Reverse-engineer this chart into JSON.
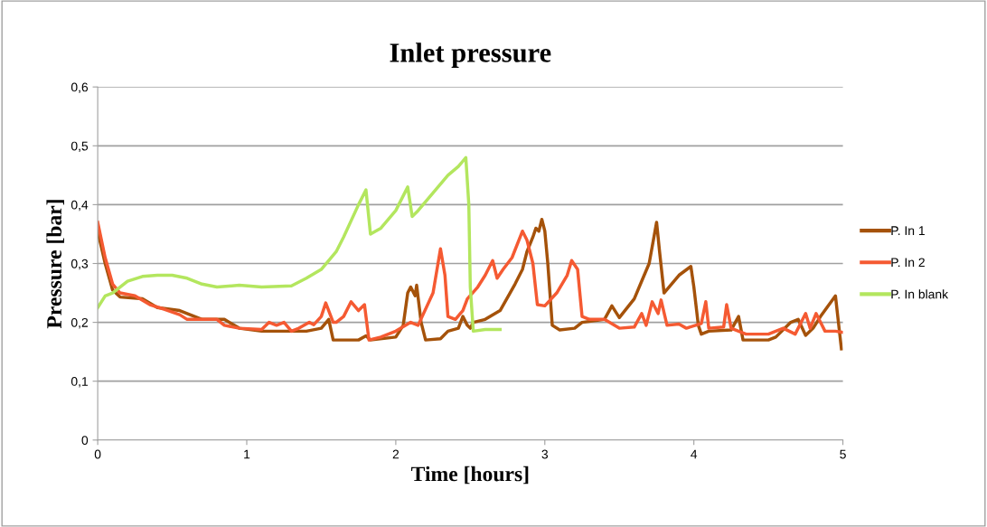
{
  "chart_data": {
    "type": "line",
    "title": "Inlet pressure",
    "xlabel": "Time [hours]",
    "ylabel": "Pressure [bar]",
    "xlim": [
      0,
      5
    ],
    "xticks": [
      0,
      1,
      2,
      3,
      4,
      5
    ],
    "ylim": [
      0,
      0.6
    ],
    "yticks": [
      {
        "value": 0,
        "label": "0"
      },
      {
        "value": 0.1,
        "label": "0,1"
      },
      {
        "value": 0.2,
        "label": "0,2"
      },
      {
        "value": 0.3,
        "label": "0,3"
      },
      {
        "value": 0.4,
        "label": "0,4"
      },
      {
        "value": 0.5,
        "label": "0,5"
      },
      {
        "value": 0.6,
        "label": "0,6"
      }
    ],
    "grid": "y",
    "legend": "right",
    "marker": "none",
    "line_style": "solid",
    "series": [
      {
        "name": "P. In 1",
        "color": "#a5520a",
        "x": [
          0.0,
          0.05,
          0.1,
          0.15,
          0.3,
          0.4,
          0.55,
          0.65,
          0.7,
          0.85,
          0.95,
          1.1,
          1.3,
          1.4,
          1.5,
          1.55,
          1.58,
          1.75,
          1.8,
          1.83,
          2.0,
          2.05,
          2.08,
          2.1,
          2.13,
          2.14,
          2.17,
          2.2,
          2.3,
          2.35,
          2.42,
          2.45,
          2.48,
          2.5,
          2.52,
          2.6,
          2.7,
          2.8,
          2.85,
          2.88,
          2.92,
          2.94,
          2.96,
          2.98,
          3.0,
          3.02,
          3.05,
          3.1,
          3.2,
          3.25,
          3.4,
          3.45,
          3.5,
          3.6,
          3.65,
          3.7,
          3.75,
          3.77,
          3.8,
          3.85,
          3.9,
          3.98,
          4.0,
          4.03,
          4.05,
          4.1,
          4.25,
          4.3,
          4.33,
          4.5,
          4.55,
          4.65,
          4.7,
          4.75,
          4.8,
          4.85,
          4.95,
          4.97,
          4.99
        ],
        "values": [
          0.355,
          0.3,
          0.255,
          0.243,
          0.24,
          0.225,
          0.22,
          0.21,
          0.205,
          0.205,
          0.19,
          0.185,
          0.185,
          0.185,
          0.19,
          0.205,
          0.17,
          0.17,
          0.177,
          0.17,
          0.175,
          0.195,
          0.25,
          0.26,
          0.245,
          0.263,
          0.2,
          0.17,
          0.172,
          0.185,
          0.19,
          0.21,
          0.195,
          0.19,
          0.2,
          0.205,
          0.22,
          0.265,
          0.29,
          0.32,
          0.345,
          0.36,
          0.355,
          0.375,
          0.355,
          0.3,
          0.195,
          0.187,
          0.19,
          0.2,
          0.205,
          0.228,
          0.208,
          0.24,
          0.27,
          0.3,
          0.37,
          0.32,
          0.25,
          0.265,
          0.28,
          0.295,
          0.26,
          0.195,
          0.18,
          0.185,
          0.187,
          0.21,
          0.17,
          0.17,
          0.175,
          0.2,
          0.205,
          0.178,
          0.19,
          0.21,
          0.245,
          0.2,
          0.155
        ]
      },
      {
        "name": "P. In 2",
        "color": "#f55a32",
        "x": [
          0.0,
          0.05,
          0.1,
          0.15,
          0.25,
          0.35,
          0.45,
          0.55,
          0.6,
          0.8,
          0.85,
          0.95,
          1.1,
          1.15,
          1.2,
          1.25,
          1.3,
          1.35,
          1.42,
          1.45,
          1.5,
          1.53,
          1.58,
          1.6,
          1.65,
          1.7,
          1.75,
          1.79,
          1.82,
          1.9,
          2.0,
          2.1,
          2.15,
          2.25,
          2.3,
          2.33,
          2.35,
          2.4,
          2.45,
          2.48,
          2.55,
          2.6,
          2.65,
          2.68,
          2.72,
          2.78,
          2.85,
          2.88,
          2.92,
          2.95,
          3.0,
          3.08,
          3.15,
          3.18,
          3.22,
          3.25,
          3.3,
          3.4,
          3.5,
          3.6,
          3.65,
          3.68,
          3.72,
          3.76,
          3.78,
          3.82,
          3.9,
          3.95,
          4.05,
          4.08,
          4.1,
          4.2,
          4.22,
          4.25,
          4.35,
          4.5,
          4.6,
          4.68,
          4.75,
          4.78,
          4.82,
          4.88,
          4.95,
          5.0
        ],
        "values": [
          0.37,
          0.31,
          0.265,
          0.25,
          0.245,
          0.23,
          0.222,
          0.213,
          0.205,
          0.205,
          0.195,
          0.19,
          0.188,
          0.2,
          0.195,
          0.2,
          0.185,
          0.19,
          0.2,
          0.196,
          0.21,
          0.233,
          0.2,
          0.2,
          0.21,
          0.235,
          0.22,
          0.23,
          0.17,
          0.175,
          0.185,
          0.2,
          0.195,
          0.25,
          0.325,
          0.28,
          0.21,
          0.205,
          0.22,
          0.24,
          0.26,
          0.28,
          0.305,
          0.275,
          0.29,
          0.31,
          0.355,
          0.34,
          0.3,
          0.23,
          0.228,
          0.25,
          0.28,
          0.305,
          0.29,
          0.21,
          0.205,
          0.205,
          0.19,
          0.192,
          0.215,
          0.195,
          0.235,
          0.215,
          0.238,
          0.195,
          0.197,
          0.19,
          0.198,
          0.235,
          0.19,
          0.192,
          0.23,
          0.19,
          0.18,
          0.18,
          0.19,
          0.18,
          0.215,
          0.19,
          0.215,
          0.185,
          0.185,
          0.183
        ]
      },
      {
        "name": "P. In blank",
        "color": "#b3e65e",
        "x": [
          0.0,
          0.05,
          0.1,
          0.2,
          0.3,
          0.4,
          0.5,
          0.6,
          0.7,
          0.8,
          0.95,
          1.1,
          1.3,
          1.4,
          1.5,
          1.6,
          1.65,
          1.75,
          1.8,
          1.83,
          1.9,
          2.0,
          2.08,
          2.11,
          2.15,
          2.25,
          2.35,
          2.42,
          2.47,
          2.49,
          2.5,
          2.52,
          2.6,
          2.7
        ],
        "values": [
          0.225,
          0.245,
          0.25,
          0.27,
          0.278,
          0.28,
          0.28,
          0.275,
          0.265,
          0.26,
          0.263,
          0.26,
          0.262,
          0.275,
          0.29,
          0.32,
          0.345,
          0.4,
          0.425,
          0.35,
          0.36,
          0.39,
          0.43,
          0.38,
          0.39,
          0.42,
          0.45,
          0.465,
          0.48,
          0.4,
          0.26,
          0.185,
          0.188,
          0.188
        ]
      }
    ]
  }
}
